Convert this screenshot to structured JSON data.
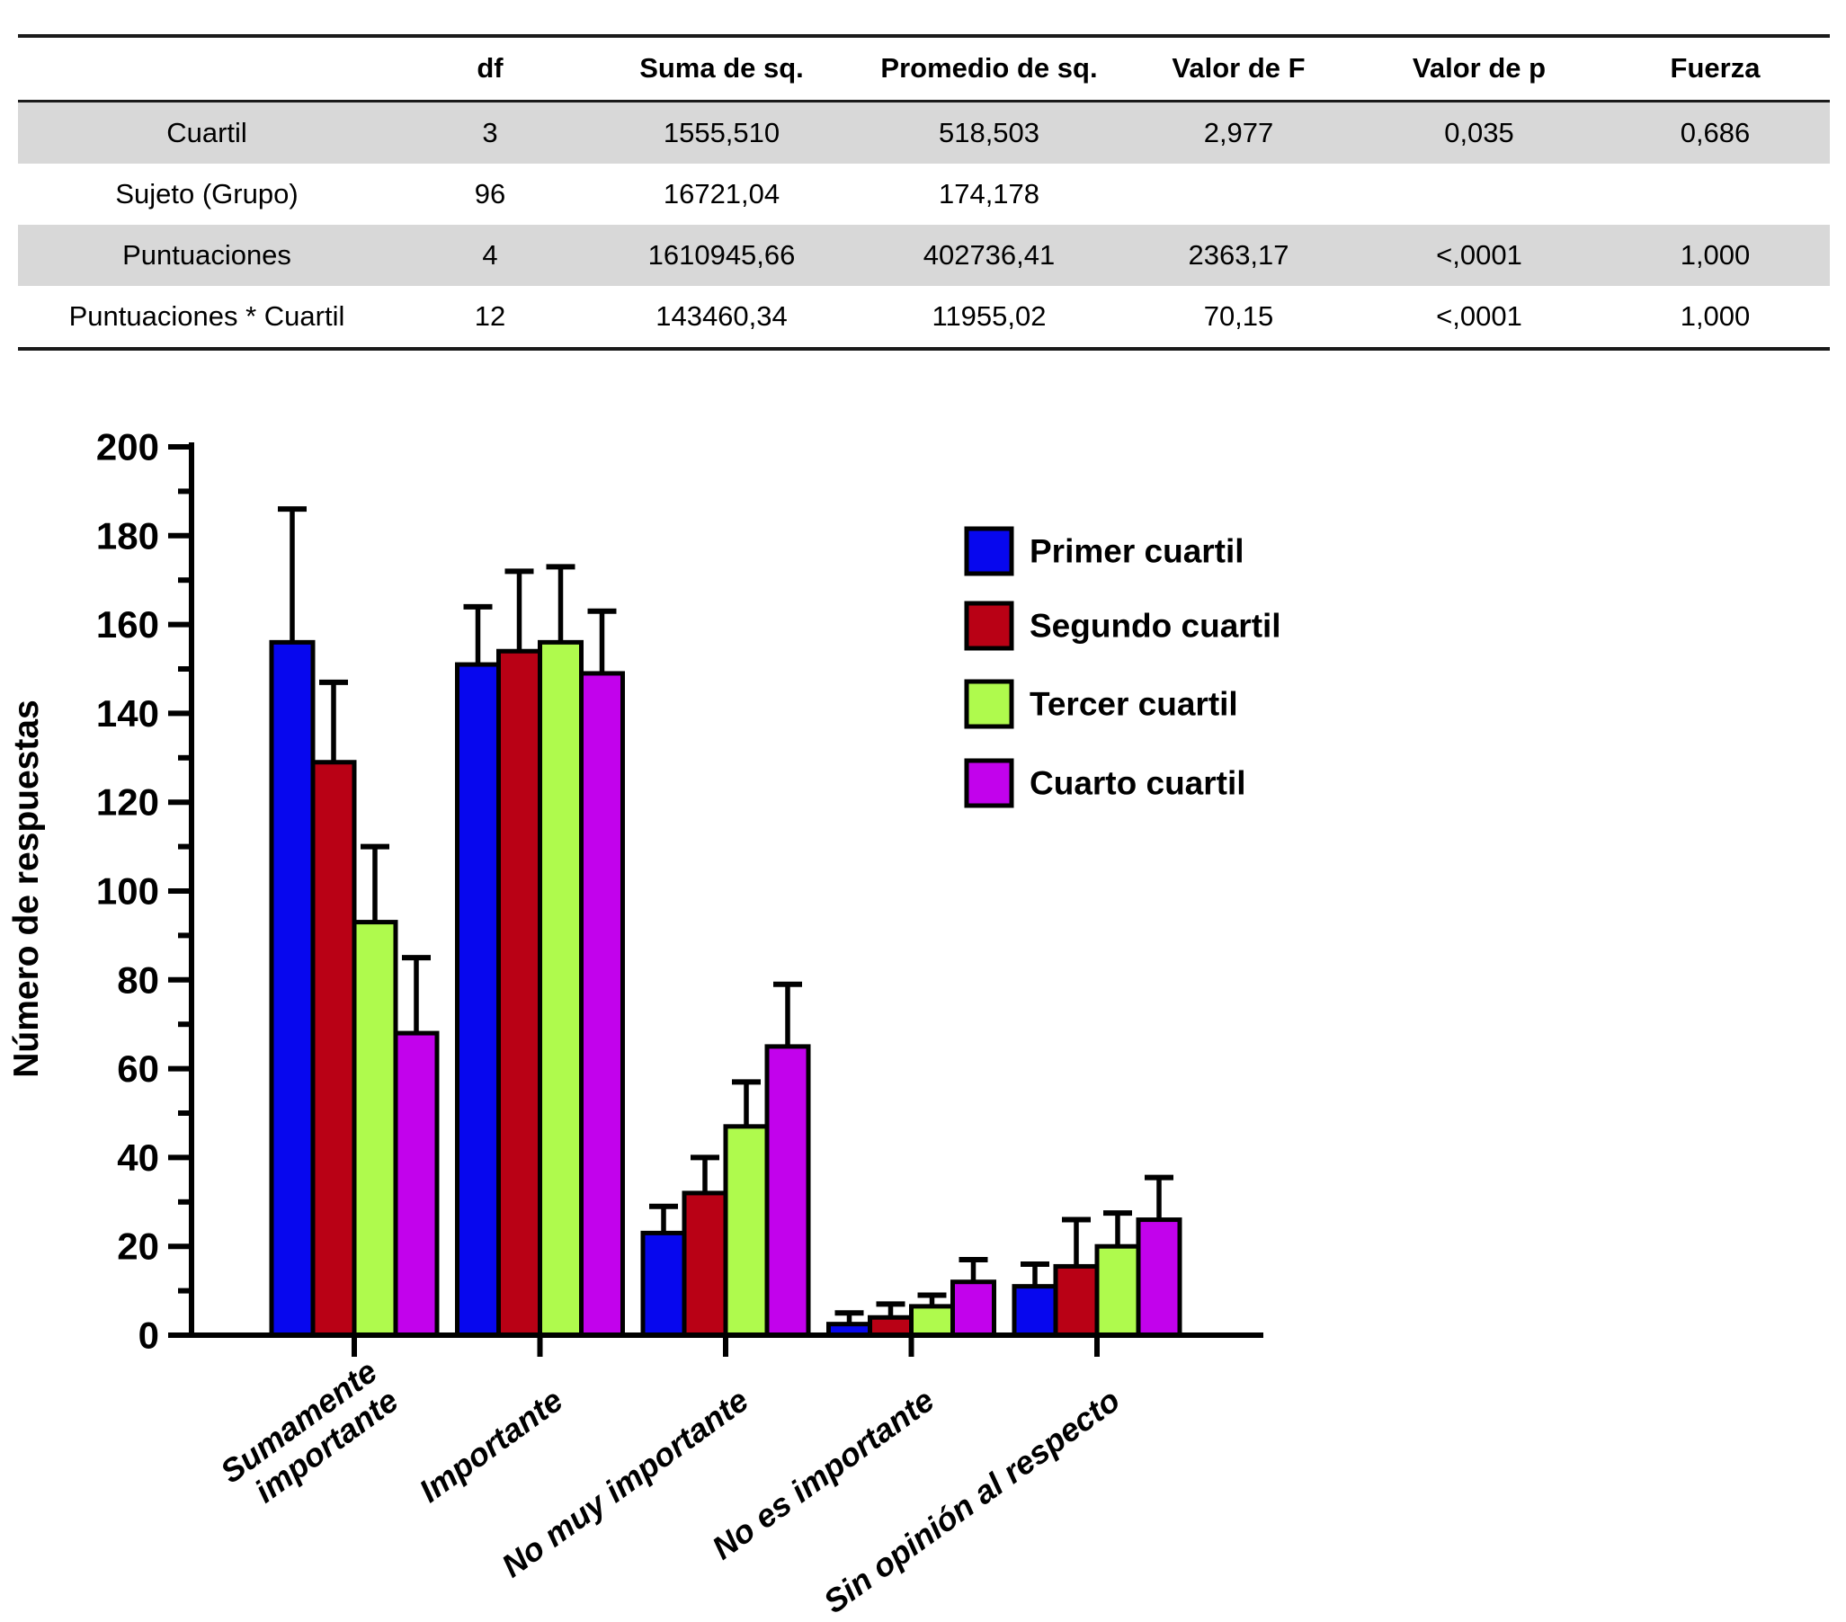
{
  "table": {
    "header": [
      "",
      "df",
      "Suma de sq.",
      "Promedio de sq.",
      "Valor de F",
      "Valor de p",
      "Fuerza"
    ],
    "rows": [
      {
        "cells": [
          "Cuartil",
          "3",
          "1555,510",
          "518,503",
          "2,977",
          "0,035",
          "0,686"
        ]
      },
      {
        "cells": [
          "Sujeto (Grupo)",
          "96",
          "16721,04",
          "174,178",
          "",
          "",
          ""
        ]
      },
      {
        "cells": [
          "Puntuaciones",
          "4",
          "1610945,66",
          "402736,41",
          "2363,17",
          "<,0001",
          "1,000"
        ]
      },
      {
        "cells": [
          "Puntuaciones * Cuartil",
          "12",
          "143460,34",
          "11955,02",
          "70,15",
          "<,0001",
          "1,000"
        ]
      }
    ]
  },
  "chart_data": {
    "type": "bar",
    "title": "",
    "xlabel": "",
    "ylabel": "Número de respuestas",
    "ylim": [
      0,
      200
    ],
    "ytick_major": 20,
    "ytick_minor": 10,
    "grid": false,
    "legend_position": "upper-right-inside",
    "categories": [
      "Sumamente\nimportante",
      "Importante",
      "No muy importante",
      "No es importante",
      "Sin opinión al respecto"
    ],
    "series": [
      {
        "name": "Primer cuartil",
        "color": "#0707EE",
        "values": [
          156,
          151,
          23,
          2.5,
          11
        ],
        "errors_up": [
          30,
          13,
          6,
          2.5,
          5
        ]
      },
      {
        "name": "Segundo cuartil",
        "color": "#B90115",
        "values": [
          129,
          154,
          32,
          4,
          15.5
        ],
        "errors_up": [
          18,
          18,
          8,
          3,
          10.5
        ]
      },
      {
        "name": "Tercer cuartil",
        "color": "#AFFA4D",
        "values": [
          93,
          156,
          47,
          6.5,
          20
        ],
        "errors_up": [
          17,
          17,
          10,
          2.5,
          7.5
        ]
      },
      {
        "name": "Cuarto cuartil",
        "color": "#C202EC",
        "values": [
          68,
          149,
          65,
          12,
          26
        ],
        "errors_up": [
          17,
          14,
          14,
          5,
          9.5
        ]
      }
    ],
    "outline_color": "#000000"
  }
}
